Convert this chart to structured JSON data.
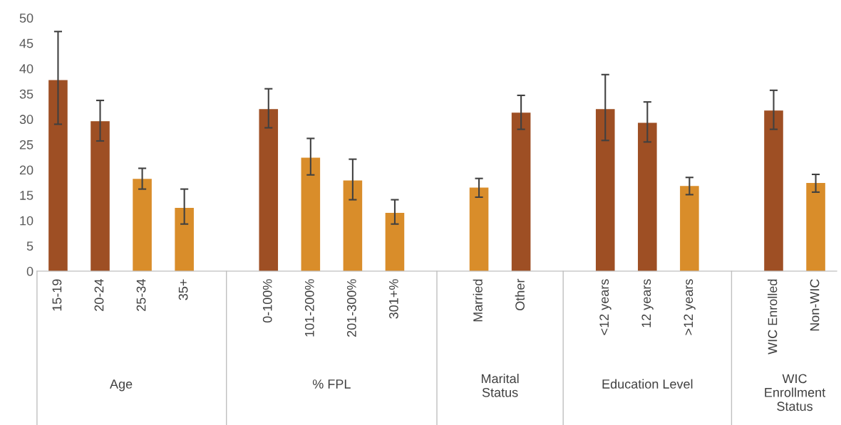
{
  "chart_data": {
    "type": "bar",
    "categories": [
      "15-19",
      "20-24",
      "25-34",
      "35+",
      null,
      "0-100%",
      "101-200%",
      "201-300%",
      "301+%",
      null,
      "Married",
      "Other",
      null,
      "<12 years",
      "12 years",
      ">12 years",
      null,
      "WIC Enrolled",
      "Non-WIC"
    ],
    "values": [
      37.7,
      29.6,
      18.2,
      12.5,
      null,
      32.0,
      22.4,
      17.9,
      11.5,
      null,
      16.5,
      31.3,
      null,
      32.0,
      29.3,
      16.8,
      null,
      31.7,
      17.4
    ],
    "errors": [
      [
        29.0,
        47.3
      ],
      [
        25.7,
        33.7
      ],
      [
        16.2,
        20.3
      ],
      [
        9.3,
        16.2
      ],
      null,
      [
        28.3,
        36.0
      ],
      [
        19.0,
        26.2
      ],
      [
        14.1,
        22.1
      ],
      [
        9.3,
        14.1
      ],
      null,
      [
        14.6,
        18.3
      ],
      [
        28.0,
        34.7
      ],
      null,
      [
        25.8,
        38.8
      ],
      [
        25.5,
        33.4
      ],
      [
        15.1,
        18.5
      ],
      null,
      [
        28.0,
        35.7
      ],
      [
        15.6,
        19.1
      ]
    ],
    "colors": [
      "#9e4f24",
      "#9e4f24",
      "#d98d2a",
      "#d98d2a",
      null,
      "#9e4f24",
      "#d98d2a",
      "#d98d2a",
      "#d98d2a",
      null,
      "#d98d2a",
      "#9e4f24",
      null,
      "#9e4f24",
      "#9e4f24",
      "#d98d2a",
      null,
      "#9e4f24",
      "#d98d2a"
    ],
    "ylim": [
      0,
      50
    ],
    "yticks": [
      0,
      5,
      10,
      15,
      20,
      25,
      30,
      35,
      40,
      45,
      50
    ],
    "annotations": [
      "Age",
      "% FPL",
      "Marital Status",
      "Education Level",
      "WIC Enrollment Status"
    ]
  }
}
